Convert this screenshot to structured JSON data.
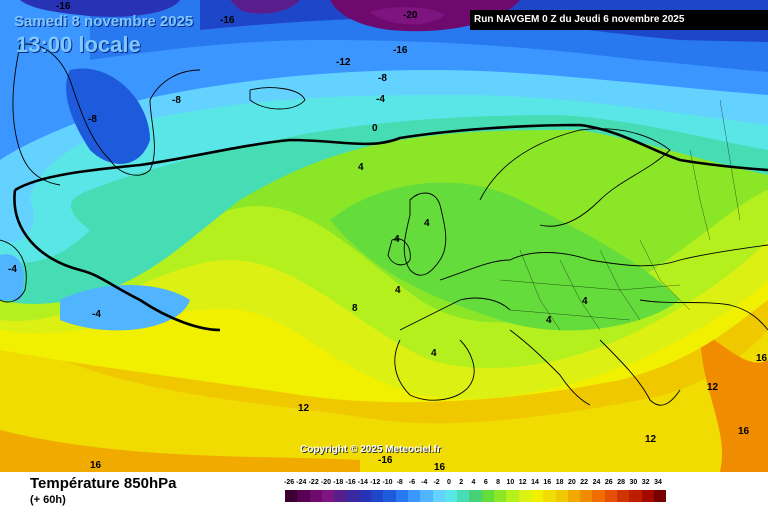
{
  "header": {
    "date": "Samedi 8 novembre 2025",
    "time": "13:00 locale",
    "run": "Run NAVGEM 0 Z du Jeudi 6 novembre 2025"
  },
  "footer": {
    "variable": "Température 850hPa",
    "lead": "(+ 60h)",
    "copyright": "Copyright © 2025 Meteociel.fr"
  },
  "contour_labels": [
    {
      "text": "-16"
    },
    {
      "text": "-16"
    },
    {
      "text": "-20"
    },
    {
      "text": "-16"
    },
    {
      "text": "-12"
    },
    {
      "text": "-8"
    },
    {
      "text": "-8"
    },
    {
      "text": "-8"
    },
    {
      "text": "-4"
    },
    {
      "text": "0"
    },
    {
      "text": "4"
    },
    {
      "text": "4"
    },
    {
      "text": "4"
    },
    {
      "text": "4"
    },
    {
      "text": "8"
    },
    {
      "text": "4"
    },
    {
      "text": "4"
    },
    {
      "text": "4"
    },
    {
      "text": "-4"
    },
    {
      "text": "-4"
    },
    {
      "text": "12"
    },
    {
      "text": "12"
    },
    {
      "text": "12"
    },
    {
      "text": "16"
    },
    {
      "text": "16"
    },
    {
      "text": "16"
    },
    {
      "text": "16"
    },
    {
      "text": "-16"
    }
  ],
  "legend": {
    "ticks": [
      "-26",
      "-24",
      "-22",
      "-20",
      "-18",
      "-16",
      "-14",
      "-12",
      "-10",
      "-8",
      "-6",
      "-4",
      "-2",
      "0",
      "2",
      "4",
      "6",
      "8",
      "10",
      "12",
      "14",
      "16",
      "18",
      "20",
      "22",
      "24",
      "26",
      "28",
      "30",
      "32",
      "34"
    ],
    "colors": [
      "#3a0032",
      "#5a0052",
      "#6e0a6e",
      "#7d1480",
      "#5a1e8c",
      "#3c28a0",
      "#2832b4",
      "#1e46c8",
      "#1e5adc",
      "#2878f0",
      "#3c96ff",
      "#50b4ff",
      "#64d2ff",
      "#5ae6e6",
      "#46dcb4",
      "#46d278",
      "#64dc3c",
      "#8ce628",
      "#b4f01e",
      "#dcf014",
      "#f0f000",
      "#f0dc00",
      "#f0c800",
      "#f0aa00",
      "#f08c00",
      "#f06e00",
      "#e65000",
      "#d23200",
      "#be1e00",
      "#a00a00",
      "#780000"
    ]
  }
}
